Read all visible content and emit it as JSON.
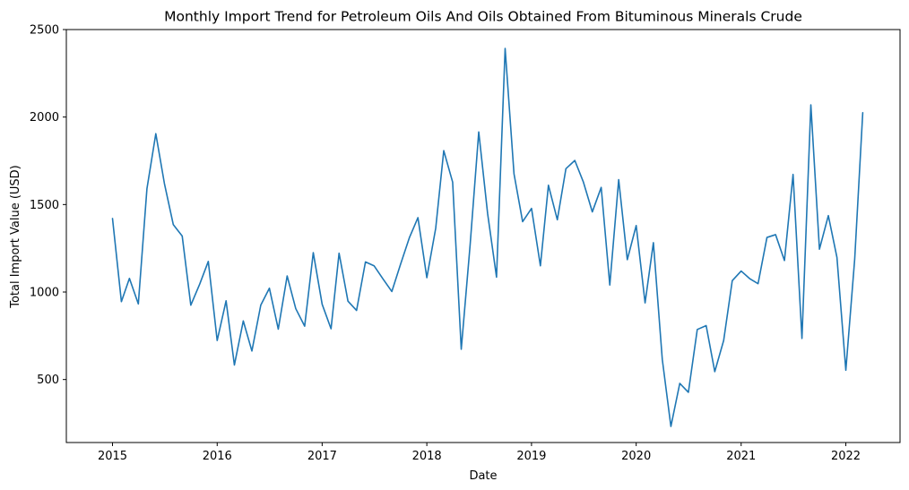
{
  "chart_data": {
    "type": "line",
    "title": "Monthly Import Trend for Petroleum Oils And Oils Obtained From Bituminous Minerals Crude",
    "xlabel": "Date",
    "ylabel": "Total Import Value (USD)",
    "xlim": [
      "2014-07-24",
      "2022-07-09"
    ],
    "ylim": [
      140,
      2500
    ],
    "x_ticks": [
      "2015",
      "2016",
      "2017",
      "2018",
      "2019",
      "2020",
      "2021",
      "2022"
    ],
    "y_ticks": [
      "500",
      "1000",
      "1500",
      "2000",
      "2500"
    ],
    "grid": false,
    "legend": "none",
    "series": [
      {
        "color": "#1f77b4",
        "x": [
          "2015-01",
          "2015-02",
          "2015-03",
          "2015-04",
          "2015-05",
          "2015-06",
          "2015-07",
          "2015-08",
          "2015-09",
          "2015-10",
          "2015-11",
          "2015-12",
          "2016-01",
          "2016-02",
          "2016-03",
          "2016-04",
          "2016-05",
          "2016-06",
          "2016-07",
          "2016-08",
          "2016-09",
          "2016-10",
          "2016-11",
          "2016-12",
          "2017-01",
          "2017-02",
          "2017-03",
          "2017-04",
          "2017-05",
          "2017-06",
          "2017-07",
          "2017-08",
          "2017-09",
          "2017-10",
          "2017-11",
          "2017-12",
          "2018-01",
          "2018-02",
          "2018-03",
          "2018-04",
          "2018-05",
          "2018-06",
          "2018-07",
          "2018-08",
          "2018-09",
          "2018-10",
          "2018-11",
          "2018-12",
          "2019-01",
          "2019-02",
          "2019-03",
          "2019-04",
          "2019-05",
          "2019-06",
          "2019-07",
          "2019-08",
          "2019-09",
          "2019-10",
          "2019-11",
          "2019-12",
          "2020-01",
          "2020-02",
          "2020-03",
          "2020-04",
          "2020-05",
          "2020-06",
          "2020-07",
          "2020-08",
          "2020-09",
          "2020-10",
          "2020-11",
          "2020-12",
          "2021-01",
          "2021-02",
          "2021-03",
          "2021-04",
          "2021-05",
          "2021-06",
          "2021-07",
          "2021-08",
          "2021-09",
          "2021-10",
          "2021-11",
          "2021-12",
          "2022-01",
          "2022-02",
          "2022-03"
        ],
        "y": [
          1420,
          945,
          1078,
          932,
          1590,
          1905,
          1620,
          1385,
          1320,
          925,
          1045,
          1175,
          723,
          950,
          583,
          835,
          663,
          925,
          1022,
          788,
          1092,
          905,
          805,
          1225,
          930,
          790,
          1222,
          948,
          895,
          1172,
          1150,
          1075,
          1003,
          1157,
          1310,
          1425,
          1082,
          1365,
          1808,
          1628,
          673,
          1270,
          1915,
          1448,
          1085,
          2392,
          1675,
          1402,
          1478,
          1150,
          1610,
          1413,
          1705,
          1752,
          1628,
          1458,
          1598,
          1040,
          1642,
          1185,
          1380,
          938,
          1282,
          615,
          232,
          478,
          427,
          786,
          808,
          545,
          723,
          1065,
          1120,
          1075,
          1048,
          1312,
          1328,
          1180,
          1672,
          735,
          2070,
          1245,
          1437,
          1198,
          553,
          1190,
          2025
        ]
      }
    ]
  }
}
